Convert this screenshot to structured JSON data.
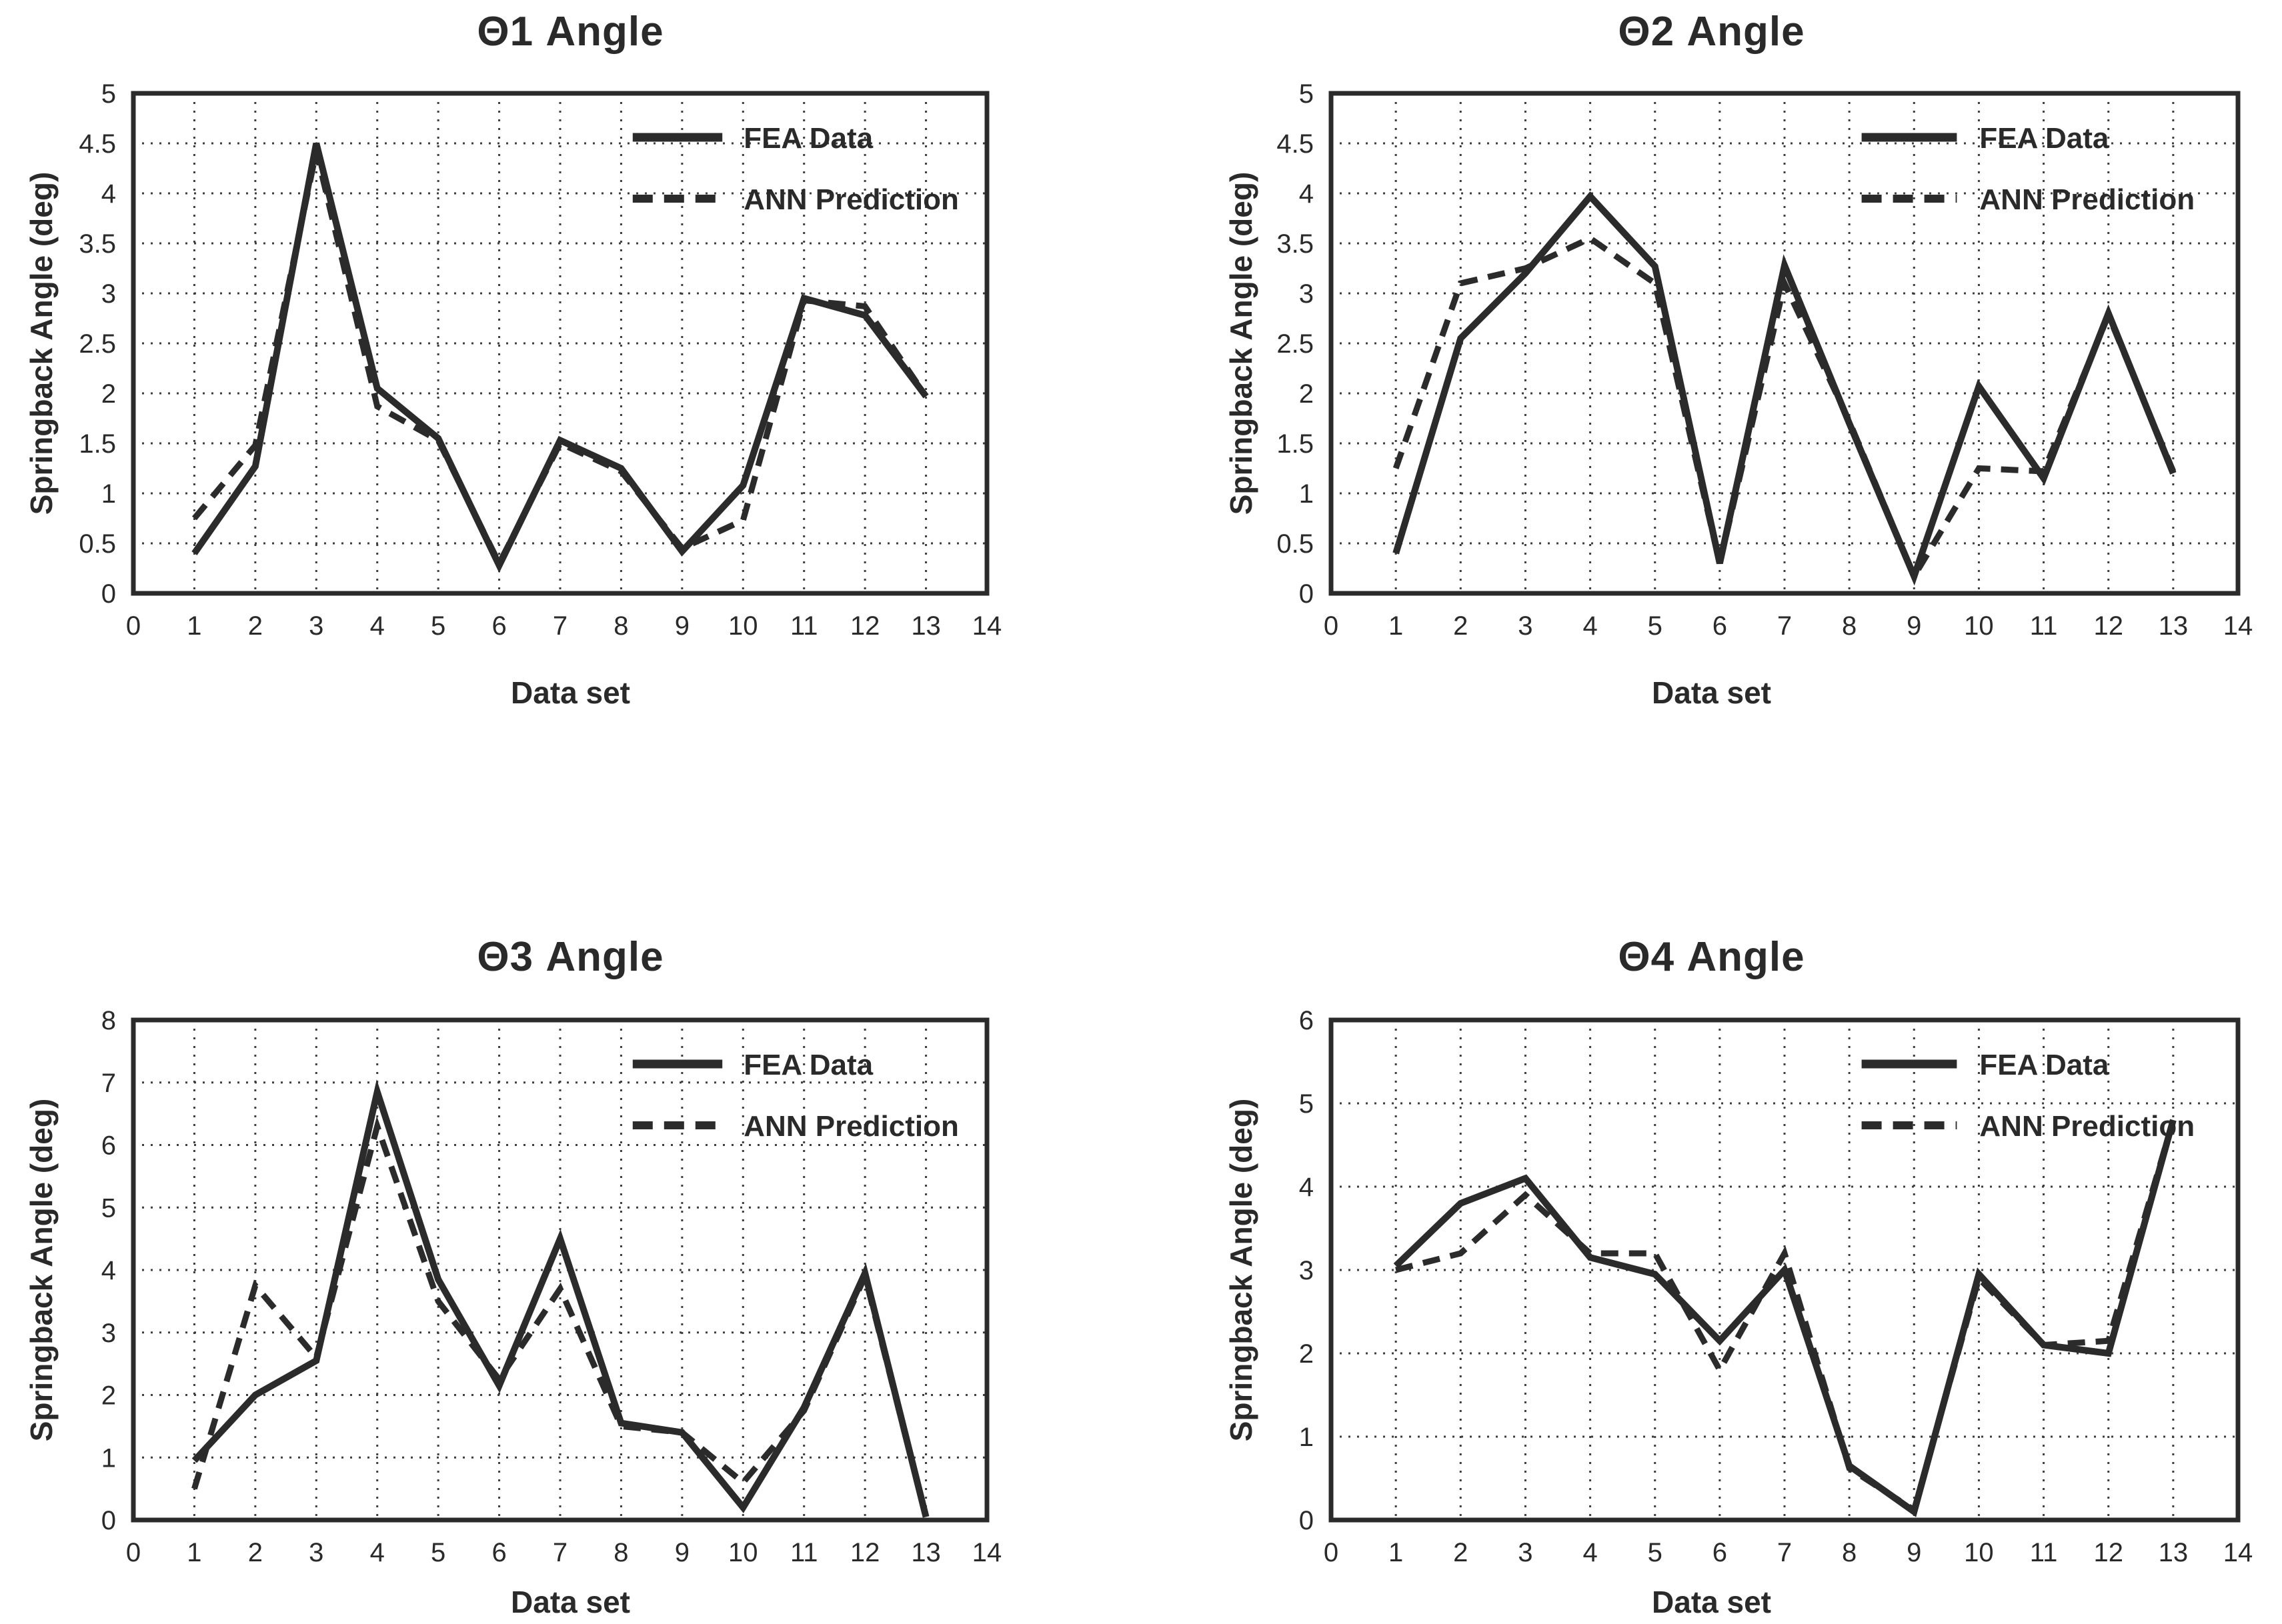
{
  "page": {
    "background": "#ffffff",
    "text_color": "#2a2a2a",
    "line_color": "#2b2b2b"
  },
  "chart_data": [
    {
      "type": "line",
      "title": "Θ1 Angle",
      "xlabel": "Data set",
      "ylabel": "Springback Angle (deg)",
      "xlim": [
        0,
        14
      ],
      "ylim": [
        0,
        5
      ],
      "xticks": [
        0,
        1,
        2,
        3,
        4,
        5,
        6,
        7,
        8,
        9,
        10,
        11,
        12,
        13,
        14
      ],
      "yticks": [
        0,
        0.5,
        1,
        1.5,
        2,
        2.5,
        3,
        3.5,
        4,
        4.5,
        5
      ],
      "grid": true,
      "legend_position": "upper right",
      "x": [
        1,
        2,
        3,
        4,
        5,
        6,
        7,
        8,
        9,
        10,
        11,
        12,
        13
      ],
      "series": [
        {
          "name": "FEA Data",
          "style": "solid",
          "values": [
            0.4,
            1.27,
            4.5,
            2.05,
            1.55,
            0.28,
            1.53,
            1.25,
            0.42,
            1.08,
            2.95,
            2.78,
            1.97
          ]
        },
        {
          "name": "ANN Prediction",
          "style": "dashed",
          "values": [
            0.75,
            1.48,
            4.42,
            1.87,
            1.53,
            0.3,
            1.5,
            1.22,
            0.45,
            0.73,
            2.93,
            2.87,
            1.97
          ]
        }
      ]
    },
    {
      "type": "line",
      "title": "Θ2 Angle",
      "xlabel": "Data set",
      "ylabel": "Springback Angle (deg)",
      "xlim": [
        0,
        14
      ],
      "ylim": [
        0,
        5
      ],
      "xticks": [
        0,
        1,
        2,
        3,
        4,
        5,
        6,
        7,
        8,
        9,
        10,
        11,
        12,
        13,
        14
      ],
      "yticks": [
        0,
        0.5,
        1,
        1.5,
        2,
        2.5,
        3,
        3.5,
        4,
        4.5,
        5
      ],
      "grid": true,
      "legend_position": "upper right",
      "x": [
        1,
        2,
        3,
        4,
        5,
        6,
        7,
        8,
        9,
        10,
        11,
        12,
        13
      ],
      "series": [
        {
          "name": "FEA Data",
          "style": "solid",
          "values": [
            0.4,
            2.55,
            3.2,
            3.97,
            3.27,
            0.3,
            3.28,
            1.7,
            0.17,
            2.07,
            1.15,
            2.8,
            1.2
          ]
        },
        {
          "name": "ANN Prediction",
          "style": "dashed",
          "values": [
            1.25,
            3.1,
            3.25,
            3.55,
            3.1,
            0.3,
            3.1,
            1.72,
            0.17,
            1.25,
            1.22,
            2.78,
            1.22
          ]
        }
      ]
    },
    {
      "type": "line",
      "title": "Θ3 Angle",
      "xlabel": "Data set",
      "ylabel": "Springback Angle (deg)",
      "xlim": [
        0,
        14
      ],
      "ylim": [
        0,
        8
      ],
      "xticks": [
        0,
        1,
        2,
        3,
        4,
        5,
        6,
        7,
        8,
        9,
        10,
        11,
        12,
        13,
        14
      ],
      "yticks": [
        0,
        1,
        2,
        3,
        4,
        5,
        6,
        7,
        8
      ],
      "grid": true,
      "legend_position": "upper right",
      "x": [
        1,
        2,
        3,
        4,
        5,
        6,
        7,
        8,
        9,
        10,
        11,
        12,
        13
      ],
      "series": [
        {
          "name": "FEA Data",
          "style": "solid",
          "values": [
            0.95,
            2.0,
            2.55,
            6.85,
            3.85,
            2.15,
            4.5,
            1.55,
            1.4,
            0.2,
            1.8,
            3.95,
            0.05
          ]
        },
        {
          "name": "ANN Prediction",
          "style": "dashed",
          "values": [
            0.5,
            3.75,
            2.6,
            6.3,
            3.5,
            2.25,
            3.7,
            1.5,
            1.4,
            0.6,
            1.75,
            3.9,
            0.05
          ]
        }
      ]
    },
    {
      "type": "line",
      "title": "Θ4 Angle",
      "xlabel": "Data set",
      "ylabel": "Springback Angle (deg)",
      "xlim": [
        0,
        14
      ],
      "ylim": [
        0,
        6
      ],
      "xticks": [
        0,
        1,
        2,
        3,
        4,
        5,
        6,
        7,
        8,
        9,
        10,
        11,
        12,
        13,
        14
      ],
      "yticks": [
        0,
        1,
        2,
        3,
        4,
        5,
        6
      ],
      "grid": true,
      "legend_position": "upper right",
      "x": [
        1,
        2,
        3,
        4,
        5,
        6,
        7,
        8,
        9,
        10,
        11,
        12,
        13
      ],
      "series": [
        {
          "name": "FEA Data",
          "style": "solid",
          "values": [
            3.05,
            3.8,
            4.1,
            3.15,
            2.95,
            2.15,
            3.0,
            0.65,
            0.1,
            2.95,
            2.1,
            2.0,
            4.8
          ]
        },
        {
          "name": "ANN Prediction",
          "style": "dashed",
          "values": [
            3.0,
            3.2,
            3.9,
            3.2,
            3.2,
            1.8,
            3.2,
            0.62,
            0.12,
            2.9,
            2.1,
            2.15,
            4.8
          ]
        }
      ]
    }
  ]
}
